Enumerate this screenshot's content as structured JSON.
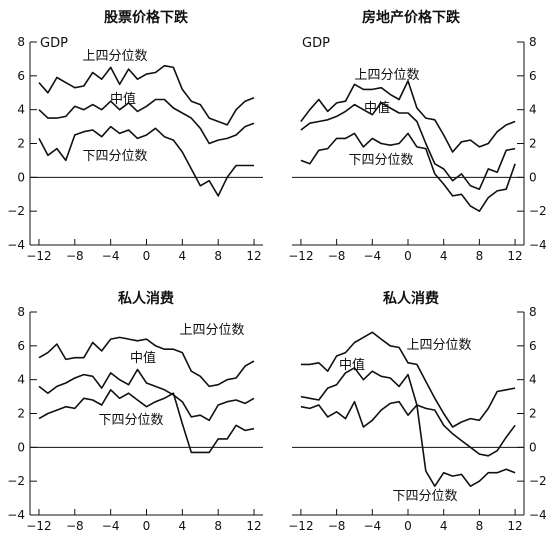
{
  "chart_data": [
    {
      "type": "line",
      "title": "股票价格下跌",
      "axis_label": "GDP",
      "x": [
        -12,
        -11,
        -10,
        -9,
        -8,
        -7,
        -6,
        -5,
        -4,
        -3,
        -2,
        -1,
        0,
        1,
        2,
        3,
        4,
        5,
        6,
        7,
        8,
        9,
        10,
        11,
        12
      ],
      "xticks": [
        -12,
        -8,
        -4,
        0,
        4,
        8,
        12
      ],
      "yticks": [
        -4,
        -2,
        0,
        2,
        4,
        6,
        8
      ],
      "xlim": [
        -13,
        13
      ],
      "ylim": [
        -4,
        8
      ],
      "tick_sides": "left",
      "series": [
        {
          "name": "上四分位数",
          "values": [
            5.6,
            5.0,
            5.9,
            5.6,
            5.3,
            5.4,
            6.2,
            5.8,
            6.5,
            5.5,
            6.4,
            5.8,
            6.1,
            6.2,
            6.6,
            6.5,
            5.2,
            4.5,
            4.3,
            3.5,
            3.3,
            3.1,
            4.0,
            4.5,
            4.7
          ]
        },
        {
          "name": "中值",
          "values": [
            4.0,
            3.5,
            3.5,
            3.6,
            4.2,
            4.0,
            4.3,
            4.0,
            4.5,
            4.0,
            4.4,
            3.9,
            4.2,
            4.6,
            4.6,
            4.1,
            3.8,
            3.5,
            2.9,
            2.0,
            2.2,
            2.3,
            2.5,
            3.0,
            3.2
          ]
        },
        {
          "name": "下四分位数",
          "values": [
            2.3,
            1.3,
            1.7,
            1.0,
            2.5,
            2.7,
            2.8,
            2.4,
            3.0,
            2.6,
            2.8,
            2.3,
            2.5,
            2.9,
            2.4,
            2.2,
            1.5,
            0.5,
            -0.5,
            -0.2,
            -1.1,
            0.0,
            0.7,
            0.7,
            0.7
          ]
        }
      ],
      "labels": [
        {
          "series": "上四分位数",
          "text": "上四分位数"
        },
        {
          "series": "中值",
          "text": "中值"
        },
        {
          "series": "下四分位数",
          "text": "下四分位数"
        }
      ]
    },
    {
      "type": "line",
      "title": "房地产价格下跌",
      "axis_label": "GDP",
      "x": [
        -12,
        -11,
        -10,
        -9,
        -8,
        -7,
        -6,
        -5,
        -4,
        -3,
        -2,
        -1,
        0,
        1,
        2,
        3,
        4,
        5,
        6,
        7,
        8,
        9,
        10,
        11,
        12
      ],
      "xticks": [
        -12,
        -8,
        -4,
        0,
        4,
        8,
        12
      ],
      "yticks": [
        -4,
        -2,
        0,
        2,
        4,
        6,
        8
      ],
      "xlim": [
        -13,
        13
      ],
      "ylim": [
        -4,
        8
      ],
      "tick_sides": "right",
      "series": [
        {
          "name": "上四分位数",
          "values": [
            3.3,
            4.0,
            4.6,
            3.9,
            4.4,
            4.5,
            5.5,
            5.2,
            5.2,
            5.3,
            4.9,
            4.6,
            5.7,
            4.1,
            3.5,
            3.4,
            2.5,
            1.5,
            2.1,
            2.2,
            1.8,
            2.0,
            2.7,
            3.1,
            3.3
          ]
        },
        {
          "name": "中值",
          "values": [
            2.8,
            3.2,
            3.3,
            3.4,
            3.6,
            3.9,
            4.3,
            4.0,
            3.7,
            4.4,
            4.1,
            3.8,
            3.8,
            3.3,
            2.0,
            0.8,
            0.5,
            -0.2,
            0.2,
            -0.5,
            -0.7,
            0.5,
            0.3,
            1.6,
            1.7
          ]
        },
        {
          "name": "下四分位数",
          "values": [
            1.0,
            0.8,
            1.6,
            1.7,
            2.3,
            2.3,
            2.6,
            1.8,
            2.3,
            2.0,
            1.9,
            2.0,
            2.6,
            1.8,
            1.7,
            0.2,
            -0.4,
            -1.1,
            -1.0,
            -1.7,
            -2.0,
            -1.2,
            -0.8,
            -0.7,
            0.8
          ]
        }
      ],
      "labels": [
        {
          "series": "上四分位数",
          "text": "上四分位数"
        },
        {
          "series": "中值",
          "text": "中值"
        },
        {
          "series": "下四分位数",
          "text": "下四分位数"
        }
      ]
    },
    {
      "type": "line",
      "title": "私人消费",
      "axis_label": "",
      "x": [
        -12,
        -11,
        -10,
        -9,
        -8,
        -7,
        -6,
        -5,
        -4,
        -3,
        -2,
        -1,
        0,
        1,
        2,
        3,
        4,
        5,
        6,
        7,
        8,
        9,
        10,
        11,
        12
      ],
      "xticks": [
        -12,
        -8,
        -4,
        0,
        4,
        8,
        12
      ],
      "yticks": [
        -4,
        -2,
        0,
        2,
        4,
        6,
        8
      ],
      "xlim": [
        -13,
        13
      ],
      "ylim": [
        -4,
        8
      ],
      "tick_sides": "left",
      "series": [
        {
          "name": "上四分位数",
          "values": [
            5.3,
            5.6,
            6.1,
            5.2,
            5.3,
            5.3,
            6.2,
            5.7,
            6.4,
            6.5,
            6.4,
            6.3,
            6.4,
            6.0,
            5.8,
            5.8,
            5.6,
            4.5,
            4.2,
            3.6,
            3.7,
            4.0,
            4.1,
            4.8,
            5.1
          ]
        },
        {
          "name": "中值",
          "values": [
            3.6,
            3.2,
            3.6,
            3.8,
            4.1,
            4.3,
            4.2,
            3.5,
            4.4,
            4.0,
            3.7,
            4.6,
            3.8,
            3.6,
            3.4,
            3.1,
            2.7,
            1.8,
            1.9,
            1.6,
            2.5,
            2.7,
            2.8,
            2.6,
            2.9
          ]
        },
        {
          "name": "下四分位数",
          "values": [
            1.7,
            2.0,
            2.2,
            2.4,
            2.3,
            2.9,
            2.8,
            2.5,
            3.4,
            2.9,
            3.2,
            2.8,
            2.4,
            2.7,
            2.9,
            3.2,
            1.4,
            -0.3,
            -0.3,
            -0.3,
            0.5,
            0.5,
            1.3,
            1.0,
            1.1
          ]
        }
      ],
      "labels": [
        {
          "series": "上四分位数",
          "text": "上四分位数"
        },
        {
          "series": "中值",
          "text": "中值"
        },
        {
          "series": "下四分位数",
          "text": "下四分位数"
        }
      ]
    },
    {
      "type": "line",
      "title": "私人消费",
      "axis_label": "",
      "x": [
        -12,
        -11,
        -10,
        -9,
        -8,
        -7,
        -6,
        -5,
        -4,
        -3,
        -2,
        -1,
        0,
        1,
        2,
        3,
        4,
        5,
        6,
        7,
        8,
        9,
        10,
        11,
        12
      ],
      "xticks": [
        -12,
        -8,
        -4,
        0,
        4,
        8,
        12
      ],
      "yticks": [
        -4,
        -2,
        0,
        2,
        4,
        6,
        8
      ],
      "xlim": [
        -13,
        13
      ],
      "ylim": [
        -4,
        8
      ],
      "tick_sides": "right",
      "series": [
        {
          "name": "上四分位数",
          "values": [
            4.9,
            4.9,
            5.0,
            4.5,
            5.4,
            5.6,
            6.2,
            6.5,
            6.8,
            6.4,
            6.0,
            5.9,
            5.0,
            4.9,
            3.9,
            2.9,
            2.0,
            1.2,
            1.5,
            1.7,
            1.6,
            2.3,
            3.3,
            3.4,
            3.5
          ]
        },
        {
          "name": "中值",
          "values": [
            3.0,
            2.9,
            2.8,
            3.5,
            3.7,
            4.4,
            4.7,
            4.0,
            4.5,
            4.2,
            4.1,
            3.6,
            4.3,
            2.5,
            2.3,
            2.2,
            1.3,
            0.8,
            0.4,
            0.0,
            -0.4,
            -0.5,
            -0.2,
            0.6,
            1.3
          ]
        },
        {
          "name": "下四分位数",
          "values": [
            2.4,
            2.3,
            2.5,
            1.8,
            2.1,
            1.7,
            2.7,
            1.2,
            1.6,
            2.2,
            2.6,
            2.7,
            1.9,
            2.5,
            -1.4,
            -2.3,
            -1.5,
            -1.7,
            -1.6,
            -2.3,
            -2.0,
            -1.5,
            -1.5,
            -1.3,
            -1.5
          ]
        }
      ],
      "labels": [
        {
          "series": "上四分位数",
          "text": "上四分位数"
        },
        {
          "series": "中值",
          "text": "中值"
        },
        {
          "series": "下四分位数",
          "text": "下四分位数"
        }
      ]
    }
  ]
}
